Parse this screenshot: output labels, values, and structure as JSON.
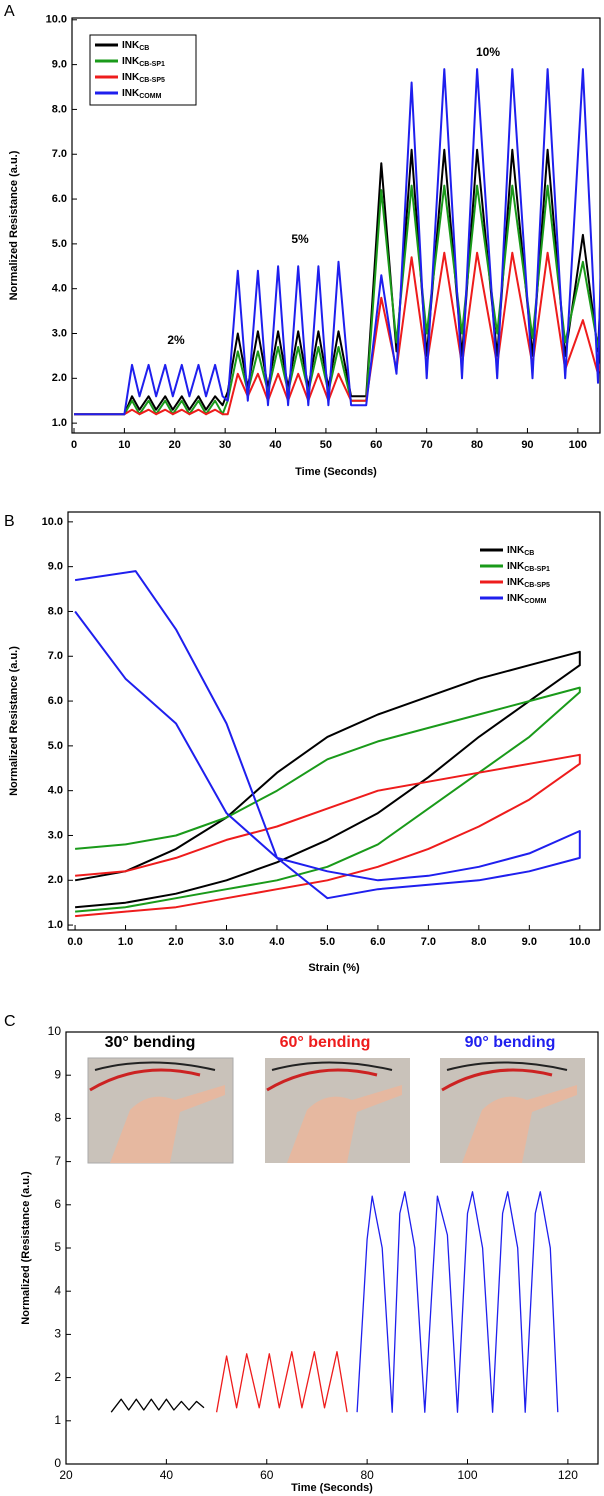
{
  "chart_data": [
    {
      "type": "line",
      "panel": "A",
      "xlabel": "Time (Seconds)",
      "ylabel": "Normalized Resistance (a.u.)",
      "xlim": [
        -0.4,
        104.4
      ],
      "ylim": [
        0.78,
        10.04
      ],
      "xticks": [
        0,
        10,
        20,
        30,
        40,
        50,
        60,
        70,
        80,
        90,
        100
      ],
      "yticks": [
        {
          "value": 1,
          "label": "1.0"
        },
        {
          "value": 2,
          "label": "2.0"
        },
        {
          "value": 3,
          "label": "3.0"
        },
        {
          "value": 4,
          "label": "4.0"
        },
        {
          "value": 5,
          "label": "5.0"
        },
        {
          "value": 6,
          "label": "6.0"
        },
        {
          "value": 7,
          "label": "7.0"
        },
        {
          "value": 8,
          "label": "8.0"
        },
        {
          "value": 9,
          "label": "9.0"
        },
        {
          "value": 10,
          "label": "10.0"
        }
      ],
      "legend": "upper left",
      "annotations": [
        "2%",
        "5%",
        "10%"
      ],
      "x": [
        0,
        10,
        11.5,
        13,
        14.8,
        16.3,
        18.1,
        19.6,
        21.4,
        22.9,
        24.7,
        26.2,
        28,
        29.5,
        30.5,
        32.5,
        34.5,
        36.5,
        38.5,
        40.5,
        42.5,
        44.5,
        46.5,
        48.5,
        50.5,
        52.5,
        55,
        58,
        61,
        64,
        67,
        70,
        73.5,
        77,
        80,
        84,
        87,
        91,
        94,
        97.5,
        101,
        104,
        105
      ],
      "series": [
        {
          "name": "INK",
          "name_sub": "CB",
          "color": "#000000",
          "values": [
            1.2,
            1.2,
            1.6,
            1.3,
            1.6,
            1.3,
            1.6,
            1.3,
            1.6,
            1.3,
            1.6,
            1.3,
            1.6,
            1.4,
            1.7,
            3.0,
            1.8,
            3.05,
            1.8,
            3.05,
            1.8,
            3.05,
            1.8,
            3.05,
            1.8,
            3.05,
            1.6,
            1.6,
            6.8,
            2.6,
            7.1,
            2.5,
            7.1,
            2.5,
            7.1,
            2.5,
            7.1,
            2.5,
            7.1,
            2.5,
            5.2,
            2.6,
            5.1
          ]
        },
        {
          "name": "INK",
          "name_sub": "CB-SP1",
          "color": "#1a9a1a",
          "values": [
            1.2,
            1.2,
            1.5,
            1.2,
            1.5,
            1.2,
            1.5,
            1.2,
            1.5,
            1.2,
            1.5,
            1.2,
            1.5,
            1.2,
            1.5,
            2.6,
            1.7,
            2.6,
            1.7,
            2.7,
            1.7,
            2.7,
            1.7,
            2.7,
            1.7,
            2.7,
            1.5,
            1.5,
            6.2,
            2.8,
            6.3,
            3.0,
            6.3,
            3.0,
            6.3,
            3.0,
            6.3,
            2.9,
            6.3,
            2.8,
            4.6,
            2.7,
            3.0
          ]
        },
        {
          "name": "INK",
          "name_sub": "CB-SP5",
          "color": "#ee1c1c",
          "values": [
            1.2,
            1.2,
            1.3,
            1.2,
            1.3,
            1.2,
            1.3,
            1.2,
            1.3,
            1.2,
            1.3,
            1.2,
            1.3,
            1.2,
            1.2,
            2.1,
            1.6,
            2.1,
            1.5,
            2.1,
            1.5,
            2.1,
            1.5,
            2.1,
            1.5,
            2.1,
            1.5,
            1.5,
            3.8,
            2.2,
            4.7,
            2.3,
            4.8,
            2.3,
            4.8,
            2.3,
            4.8,
            2.3,
            4.8,
            2.2,
            3.3,
            2.1,
            2.5
          ]
        },
        {
          "name": "INK",
          "name_sub": "COMM",
          "color": "#1f1fee",
          "values": [
            1.2,
            1.2,
            2.3,
            1.6,
            2.3,
            1.6,
            2.3,
            1.6,
            2.3,
            1.6,
            2.3,
            1.6,
            2.3,
            1.6,
            1.5,
            4.4,
            1.5,
            4.4,
            1.4,
            4.5,
            1.4,
            4.5,
            1.4,
            4.5,
            1.4,
            4.6,
            1.4,
            1.4,
            4.3,
            2.1,
            8.6,
            2.0,
            8.9,
            2.0,
            8.9,
            2.0,
            8.9,
            2.0,
            8.9,
            2.0,
            8.9,
            1.9,
            6.6
          ]
        }
      ]
    },
    {
      "type": "line",
      "panel": "B",
      "xlabel": "Strain (%)",
      "ylabel": "Normalized Resistance (a.u.)",
      "xlim": [
        -0.14,
        10.4
      ],
      "ylim": [
        0.89,
        10.22
      ],
      "xticks": [
        {
          "value": 0,
          "label": "0.0"
        },
        {
          "value": 1,
          "label": "1.0"
        },
        {
          "value": 2,
          "label": "2.0"
        },
        {
          "value": 3,
          "label": "3.0"
        },
        {
          "value": 4,
          "label": "4.0"
        },
        {
          "value": 5,
          "label": "5.0"
        },
        {
          "value": 6,
          "label": "6.0"
        },
        {
          "value": 7,
          "label": "7.0"
        },
        {
          "value": 8,
          "label": "8.0"
        },
        {
          "value": 9,
          "label": "9.0"
        },
        {
          "value": 10,
          "label": "10.0"
        }
      ],
      "yticks": [
        {
          "value": 1,
          "label": "1.0"
        },
        {
          "value": 2,
          "label": "2.0"
        },
        {
          "value": 3,
          "label": "3.0"
        },
        {
          "value": 4,
          "label": "4.0"
        },
        {
          "value": 5,
          "label": "5.0"
        },
        {
          "value": 6,
          "label": "6.0"
        },
        {
          "value": 7,
          "label": "7.0"
        },
        {
          "value": 8,
          "label": "8.0"
        },
        {
          "value": 9,
          "label": "9.0"
        },
        {
          "value": 10,
          "label": "10.0"
        }
      ],
      "legend": "upper right",
      "series": [
        {
          "name": "INK",
          "name_sub": "CB",
          "color": "#000000",
          "x": [
            0,
            1,
            2,
            3,
            4,
            5,
            6,
            7,
            8,
            9,
            10,
            10,
            9,
            8,
            7,
            6,
            5,
            4,
            3,
            2,
            1,
            0
          ],
          "values": [
            1.4,
            1.5,
            1.7,
            2.0,
            2.4,
            2.9,
            3.5,
            4.3,
            5.2,
            6.0,
            6.8,
            7.1,
            6.8,
            6.5,
            6.1,
            5.7,
            5.2,
            4.4,
            3.4,
            2.7,
            2.2,
            2.0
          ]
        },
        {
          "name": "INK",
          "name_sub": "CB-SP1",
          "color": "#1a9a1a",
          "x": [
            0,
            1,
            2,
            3,
            4,
            5,
            6,
            7,
            8,
            9,
            10,
            10,
            9,
            8,
            7,
            6,
            5,
            4,
            3,
            2,
            1,
            0
          ],
          "values": [
            1.3,
            1.4,
            1.6,
            1.8,
            2.0,
            2.3,
            2.8,
            3.6,
            4.4,
            5.2,
            6.2,
            6.3,
            6.0,
            5.7,
            5.4,
            5.1,
            4.7,
            4.0,
            3.4,
            3.0,
            2.8,
            2.7
          ]
        },
        {
          "name": "INK",
          "name_sub": "CB-SP5",
          "color": "#ee1c1c",
          "x": [
            0,
            1,
            2,
            3,
            4,
            5,
            6,
            7,
            8,
            9,
            10,
            10,
            9,
            8,
            7,
            6,
            5,
            4,
            3,
            2,
            1,
            0
          ],
          "values": [
            1.2,
            1.3,
            1.4,
            1.6,
            1.8,
            2.0,
            2.3,
            2.7,
            3.2,
            3.8,
            4.6,
            4.8,
            4.6,
            4.4,
            4.2,
            4.0,
            3.6,
            3.2,
            2.9,
            2.5,
            2.2,
            2.1
          ]
        },
        {
          "name": "INK",
          "name_sub": "COMM",
          "color": "#1f1fee",
          "x": [
            0,
            1.2,
            2,
            3,
            4,
            5,
            6,
            7,
            8,
            9,
            10,
            10,
            9,
            8,
            7,
            6,
            5,
            4,
            3,
            2,
            1,
            0
          ],
          "values": [
            8.7,
            8.9,
            7.6,
            5.5,
            2.5,
            1.6,
            1.8,
            1.9,
            2.0,
            2.2,
            2.5,
            3.1,
            2.6,
            2.3,
            2.1,
            2.0,
            2.2,
            2.5,
            3.5,
            5.5,
            6.5,
            8.0
          ]
        }
      ]
    },
    {
      "type": "line",
      "panel": "C",
      "xlabel": "Time (Seconds)",
      "ylabel": "Normalized (Resistance (a.u.)",
      "xlim": [
        20,
        126
      ],
      "ylim": [
        0,
        10
      ],
      "xticks": [
        20,
        40,
        60,
        80,
        100,
        120
      ],
      "yticks": [
        0,
        1,
        2,
        3,
        4,
        5,
        6,
        7,
        8,
        9,
        10
      ],
      "legend": "top",
      "series": [
        {
          "name": "30° bending",
          "color": "#000000",
          "x": [
            29,
            31,
            32.5,
            34,
            35.5,
            37,
            38.5,
            40,
            41.5,
            43,
            44.5,
            46,
            47.5
          ],
          "values": [
            1.2,
            1.5,
            1.25,
            1.5,
            1.25,
            1.5,
            1.25,
            1.5,
            1.25,
            1.45,
            1.25,
            1.45,
            1.3
          ]
        },
        {
          "name": "60° bending",
          "color": "#ee1c1c",
          "x": [
            50,
            52,
            54,
            56,
            58.5,
            60.5,
            62.5,
            65,
            67,
            69.5,
            71.5,
            74,
            76
          ],
          "values": [
            1.2,
            2.5,
            1.3,
            2.55,
            1.3,
            2.55,
            1.3,
            2.6,
            1.3,
            2.6,
            1.3,
            2.6,
            1.2
          ]
        },
        {
          "name": "90° bending",
          "color": "#1f1fee",
          "x": [
            78,
            80,
            81,
            83,
            85,
            86.5,
            87.5,
            89.5,
            91.5,
            94,
            96,
            98,
            100,
            101,
            103,
            105,
            107,
            108,
            110,
            111.5,
            113.5,
            114.5,
            116.5,
            118
          ],
          "values": [
            1.2,
            5.2,
            6.2,
            5.0,
            1.2,
            5.8,
            6.3,
            5.0,
            1.2,
            6.2,
            5.3,
            1.2,
            5.8,
            6.3,
            5.0,
            1.2,
            5.8,
            6.3,
            5.0,
            1.2,
            5.8,
            6.3,
            5.0,
            1.2
          ]
        }
      ]
    }
  ]
}
